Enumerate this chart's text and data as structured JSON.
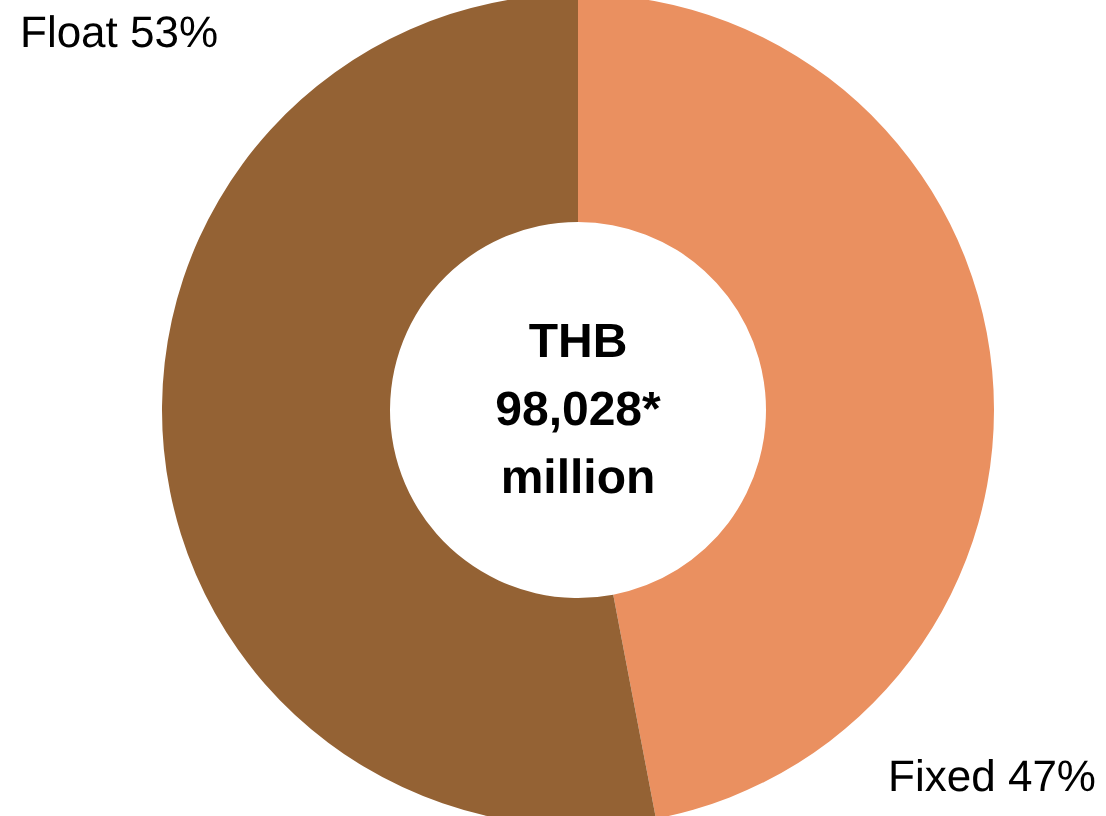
{
  "chart_data": {
    "type": "donut",
    "categories": [
      "Fixed",
      "Float"
    ],
    "values": [
      47,
      53
    ],
    "value_labels": [
      "47%",
      "53%"
    ],
    "colors": [
      "#ea9060",
      "#946234"
    ],
    "annotations": [
      "THB\n98,028*\nmillion"
    ],
    "legend": false
  }
}
